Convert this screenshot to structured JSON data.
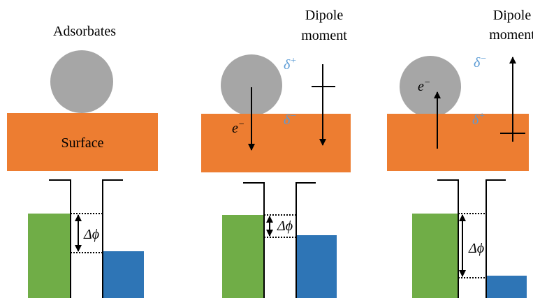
{
  "panels": [
    {
      "label": "Adsorbates",
      "surface": "Surface",
      "delta_phi": "Δϕ"
    },
    {
      "dipole": [
        "Dipole",
        "moment"
      ],
      "delta_top": {
        "symbol": "δ",
        "charge": "+"
      },
      "delta_bottom": {
        "symbol": "δ",
        "charge": "−"
      },
      "electron": {
        "symbol": "e",
        "charge": "−"
      },
      "delta_phi": "Δϕ"
    },
    {
      "dipole": [
        "Dipole",
        "moment"
      ],
      "delta_top": {
        "symbol": "δ",
        "charge": "−"
      },
      "delta_bottom": {
        "symbol": "δ",
        "charge": "+"
      },
      "electron": {
        "symbol": "e",
        "charge": "−"
      },
      "delta_phi": "Δϕ"
    }
  ]
}
